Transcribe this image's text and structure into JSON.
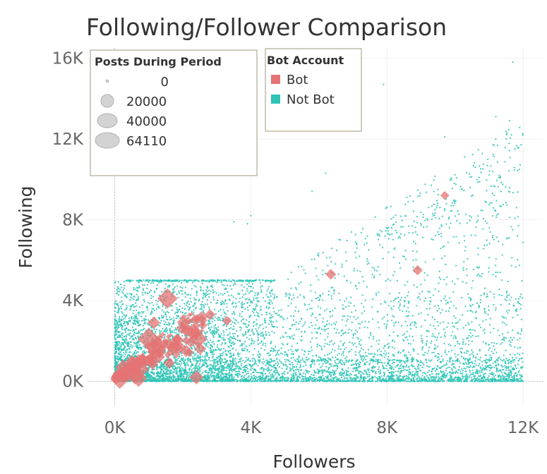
{
  "chart_data": {
    "type": "scatter",
    "title": "Following/Follower Comparison",
    "xlabel": "Followers",
    "ylabel": "Following",
    "xlim": [
      -800,
      12600
    ],
    "ylim": [
      -1200,
      16500
    ],
    "x_ticks": [
      0,
      4000,
      8000,
      12000
    ],
    "x_tick_labels": [
      "0K",
      "4K",
      "8K",
      "12K"
    ],
    "y_ticks": [
      0,
      4000,
      8000,
      12000,
      16000
    ],
    "y_tick_labels": [
      "0K",
      "4K",
      "8K",
      "12K",
      "16K"
    ],
    "grid": true,
    "colors": {
      "bot": "#e57373",
      "not_bot": "#2ec4b6"
    },
    "size_legend": {
      "title": "Posts During Period",
      "placement": "top-left",
      "entries": [
        {
          "label": "0",
          "value": 0
        },
        {
          "label": "20000",
          "value": 20000
        },
        {
          "label": "40000",
          "value": 40000
        },
        {
          "label": "64110",
          "value": 64110
        }
      ]
    },
    "color_legend": {
      "title": "Bot Account",
      "placement": "top",
      "entries": [
        {
          "label": "Bot",
          "color": "#e57373"
        },
        {
          "label": "Not Bot",
          "color": "#2ec4b6"
        }
      ]
    },
    "series": [
      {
        "name": "Bot",
        "points": [
          {
            "x": 150,
            "y": 80,
            "posts": 30000
          },
          {
            "x": 400,
            "y": 500,
            "posts": 45000
          },
          {
            "x": 600,
            "y": 300,
            "posts": 30000
          },
          {
            "x": 1000,
            "y": 2100,
            "posts": 50000
          },
          {
            "x": 1550,
            "y": 4100,
            "posts": 40000
          },
          {
            "x": 2450,
            "y": 2100,
            "posts": 30000
          },
          {
            "x": 2400,
            "y": 200,
            "posts": 15000
          },
          {
            "x": 800,
            "y": 600,
            "posts": 15000
          },
          {
            "x": 250,
            "y": 700,
            "posts": 20000
          },
          {
            "x": 1150,
            "y": 2900,
            "posts": 10000
          },
          {
            "x": 1800,
            "y": 1700,
            "posts": 12000
          },
          {
            "x": 2100,
            "y": 1500,
            "posts": 9000
          },
          {
            "x": 2800,
            "y": 3300,
            "posts": 6000
          },
          {
            "x": 3300,
            "y": 3000,
            "posts": 4000
          },
          {
            "x": 6350,
            "y": 5300,
            "posts": 6000
          },
          {
            "x": 8900,
            "y": 5500,
            "posts": 5000
          },
          {
            "x": 9700,
            "y": 9200,
            "posts": 3000
          },
          {
            "x": 1300,
            "y": 1200,
            "posts": 8000
          },
          {
            "x": 1600,
            "y": 900,
            "posts": 7000
          },
          {
            "x": 500,
            "y": 1000,
            "posts": 10000
          },
          {
            "x": 700,
            "y": 150,
            "posts": 25000
          }
        ]
      },
      {
        "name": "Not Bot",
        "distribution": "dense scatter of small points across 0–12K followers and 0–5K following, with a plateau band at ~5,000 following up to ~4.7K followers and a sparser wedge rising to ~13K following at 12K followers; outliers near (11.7K, 15.8K) and (7.9K, 14.7K)"
      }
    ]
  }
}
